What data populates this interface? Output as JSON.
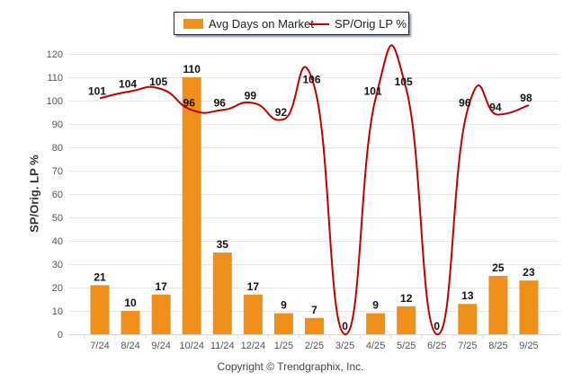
{
  "chart_data": {
    "type": "bar+line",
    "categories": [
      "7/24",
      "8/24",
      "9/24",
      "10/24",
      "11/24",
      "12/24",
      "1/25",
      "2/25",
      "3/25",
      "4/25",
      "5/25",
      "6/25",
      "7/25",
      "8/25",
      "9/25"
    ],
    "series": [
      {
        "name": "Avg Days on Market",
        "type": "bar",
        "color": "#f0901a",
        "values": [
          21,
          10,
          17,
          110,
          35,
          17,
          9,
          7,
          0,
          9,
          12,
          0,
          13,
          25,
          23
        ]
      },
      {
        "name": "SP/Orig LP %",
        "type": "line",
        "color": "#c00000",
        "values": [
          101,
          104,
          105,
          96,
          96,
          99,
          92,
          106,
          0,
          101,
          105,
          0,
          96,
          94,
          98
        ]
      }
    ],
    "ylabel": "SP/Orig. LP %",
    "ylim": [
      0,
      120
    ],
    "yticks": [
      0,
      10,
      20,
      30,
      40,
      50,
      60,
      70,
      80,
      90,
      100,
      110,
      120
    ],
    "grid": true,
    "legend": "top-center"
  },
  "legend": {
    "bar_label": "Avg Days on Market",
    "line_label": "SP/Orig LP %"
  },
  "footer": {
    "copyright": "Copyright © Trendgraphix, Inc."
  }
}
